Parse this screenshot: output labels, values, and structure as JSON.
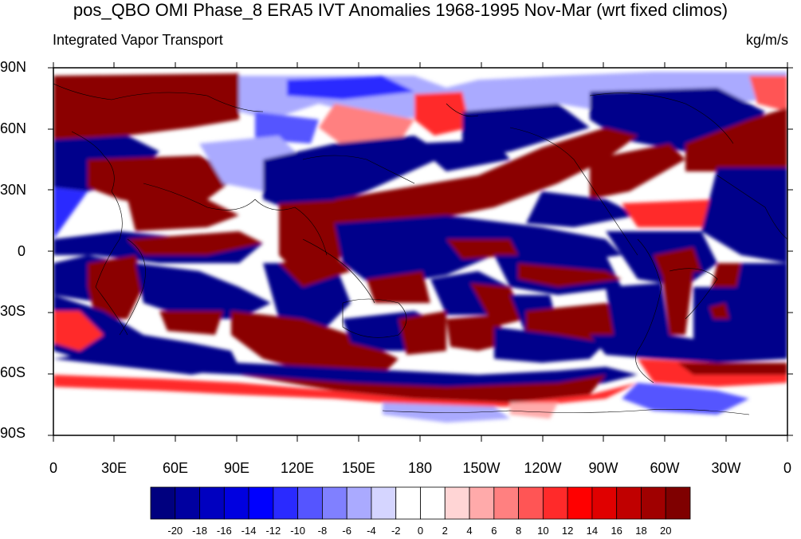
{
  "title": "pos_QBO OMI Phase_8 ERA5 IVT Anomalies 1968-1995 Nov-Mar (wrt fixed climos)",
  "left_string": "Integrated Vapor Transport",
  "right_string": "kg/m/s",
  "y_axis_labels": [
    "90N",
    "60N",
    "30N",
    "0",
    "30S",
    "60S",
    "90S"
  ],
  "x_axis_labels": [
    "0",
    "30E",
    "60E",
    "90E",
    "120E",
    "150E",
    "180",
    "150W",
    "120W",
    "90W",
    "60W",
    "30W",
    "0"
  ],
  "colorbar": {
    "labels": [
      "-20",
      "-18",
      "-16",
      "-14",
      "-12",
      "-10",
      "-8",
      "-6",
      "-4",
      "-2",
      "0",
      "2",
      "4",
      "6",
      "8",
      "10",
      "12",
      "14",
      "16",
      "18",
      "20"
    ],
    "colors": [
      "#00007f",
      "#0000a0",
      "#0000c0",
      "#0000e0",
      "#0000ff",
      "#2a2aff",
      "#5555ff",
      "#8080ff",
      "#aaaaff",
      "#d5d5ff",
      "#ffffff",
      "#ffffff",
      "#ffd5d5",
      "#ffaaaa",
      "#ff8080",
      "#ff5555",
      "#ff2a2a",
      "#ff0000",
      "#e00000",
      "#c00000",
      "#a00000",
      "#7f0000"
    ]
  },
  "map_colors": {
    "deep_blue": "#00008b",
    "mid_blue": "#2a2aff",
    "light_blue": "#aaaaff",
    "deep_red": "#8b0000",
    "mid_red": "#ff2a2a",
    "light_red": "#ffaaaa",
    "white": "#ffffff"
  }
}
